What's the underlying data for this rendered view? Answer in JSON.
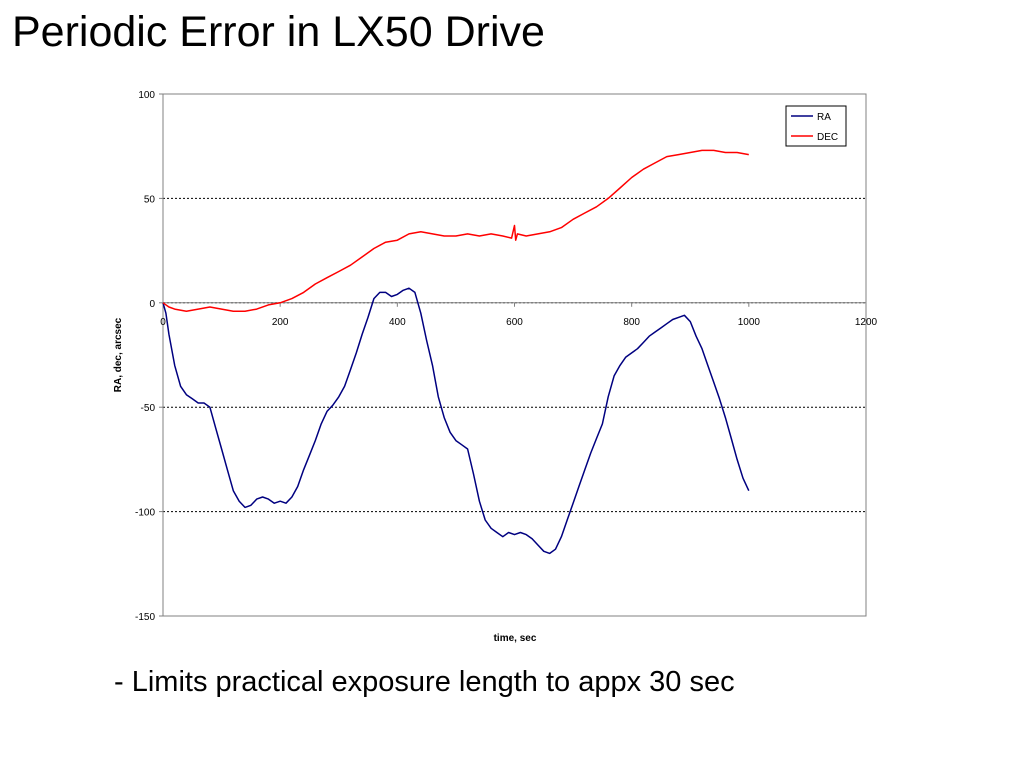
{
  "slide": {
    "title": "Periodic Error in LX50 Drive",
    "bullet": "- Limits practical exposure length to appx 30 sec"
  },
  "chart_data": {
    "type": "line",
    "title": "",
    "xlabel": "time, sec",
    "ylabel": "RA, dec, arcsec",
    "xlim": [
      0,
      1200
    ],
    "ylim": [
      -150,
      100
    ],
    "xticks": [
      0,
      200,
      400,
      600,
      800,
      1000,
      1200
    ],
    "yticks": [
      100,
      50,
      0,
      -50,
      -100,
      -150
    ],
    "grid": "horizontal-dashed",
    "legend": "top-right",
    "series": [
      {
        "name": "RA",
        "color": "#000080",
        "points": [
          [
            0,
            0
          ],
          [
            5,
            -5
          ],
          [
            10,
            -15
          ],
          [
            20,
            -30
          ],
          [
            30,
            -40
          ],
          [
            40,
            -44
          ],
          [
            50,
            -46
          ],
          [
            60,
            -48
          ],
          [
            70,
            -48
          ],
          [
            80,
            -50
          ],
          [
            90,
            -60
          ],
          [
            100,
            -70
          ],
          [
            110,
            -80
          ],
          [
            120,
            -90
          ],
          [
            130,
            -95
          ],
          [
            140,
            -98
          ],
          [
            150,
            -97
          ],
          [
            160,
            -94
          ],
          [
            170,
            -93
          ],
          [
            180,
            -94
          ],
          [
            190,
            -96
          ],
          [
            200,
            -95
          ],
          [
            210,
            -96
          ],
          [
            220,
            -93
          ],
          [
            230,
            -88
          ],
          [
            240,
            -80
          ],
          [
            250,
            -73
          ],
          [
            260,
            -66
          ],
          [
            270,
            -58
          ],
          [
            280,
            -52
          ],
          [
            290,
            -49
          ],
          [
            300,
            -45
          ],
          [
            310,
            -40
          ],
          [
            320,
            -32
          ],
          [
            330,
            -24
          ],
          [
            340,
            -15
          ],
          [
            350,
            -7
          ],
          [
            360,
            2
          ],
          [
            370,
            5
          ],
          [
            380,
            5
          ],
          [
            390,
            3
          ],
          [
            400,
            4
          ],
          [
            410,
            6
          ],
          [
            420,
            7
          ],
          [
            430,
            5
          ],
          [
            440,
            -5
          ],
          [
            450,
            -18
          ],
          [
            460,
            -30
          ],
          [
            470,
            -45
          ],
          [
            480,
            -55
          ],
          [
            490,
            -62
          ],
          [
            500,
            -66
          ],
          [
            510,
            -68
          ],
          [
            520,
            -70
          ],
          [
            530,
            -82
          ],
          [
            540,
            -95
          ],
          [
            550,
            -104
          ],
          [
            560,
            -108
          ],
          [
            570,
            -110
          ],
          [
            580,
            -112
          ],
          [
            590,
            -110
          ],
          [
            600,
            -111
          ],
          [
            610,
            -110
          ],
          [
            620,
            -111
          ],
          [
            630,
            -113
          ],
          [
            640,
            -116
          ],
          [
            650,
            -119
          ],
          [
            660,
            -120
          ],
          [
            670,
            -118
          ],
          [
            680,
            -112
          ],
          [
            690,
            -104
          ],
          [
            700,
            -96
          ],
          [
            710,
            -88
          ],
          [
            720,
            -80
          ],
          [
            730,
            -72
          ],
          [
            740,
            -65
          ],
          [
            750,
            -58
          ],
          [
            760,
            -45
          ],
          [
            770,
            -35
          ],
          [
            780,
            -30
          ],
          [
            790,
            -26
          ],
          [
            800,
            -24
          ],
          [
            810,
            -22
          ],
          [
            820,
            -19
          ],
          [
            830,
            -16
          ],
          [
            840,
            -14
          ],
          [
            850,
            -12
          ],
          [
            860,
            -10
          ],
          [
            870,
            -8
          ],
          [
            880,
            -7
          ],
          [
            890,
            -6
          ],
          [
            900,
            -9
          ],
          [
            910,
            -16
          ],
          [
            920,
            -22
          ],
          [
            930,
            -30
          ],
          [
            940,
            -38
          ],
          [
            950,
            -46
          ],
          [
            960,
            -55
          ],
          [
            970,
            -65
          ],
          [
            980,
            -75
          ],
          [
            990,
            -84
          ],
          [
            1000,
            -90
          ]
        ]
      },
      {
        "name": "DEC",
        "color": "#ff0000",
        "points": [
          [
            0,
            0
          ],
          [
            10,
            -2
          ],
          [
            20,
            -3
          ],
          [
            40,
            -4
          ],
          [
            60,
            -3
          ],
          [
            80,
            -2
          ],
          [
            100,
            -3
          ],
          [
            120,
            -4
          ],
          [
            140,
            -4
          ],
          [
            160,
            -3
          ],
          [
            180,
            -1
          ],
          [
            200,
            0
          ],
          [
            220,
            2
          ],
          [
            240,
            5
          ],
          [
            260,
            9
          ],
          [
            280,
            12
          ],
          [
            300,
            15
          ],
          [
            320,
            18
          ],
          [
            340,
            22
          ],
          [
            360,
            26
          ],
          [
            380,
            29
          ],
          [
            400,
            30
          ],
          [
            420,
            33
          ],
          [
            440,
            34
          ],
          [
            460,
            33
          ],
          [
            480,
            32
          ],
          [
            500,
            32
          ],
          [
            520,
            33
          ],
          [
            540,
            32
          ],
          [
            560,
            33
          ],
          [
            580,
            32
          ],
          [
            595,
            31
          ],
          [
            600,
            37
          ],
          [
            602,
            30
          ],
          [
            605,
            33
          ],
          [
            620,
            32
          ],
          [
            640,
            33
          ],
          [
            660,
            34
          ],
          [
            680,
            36
          ],
          [
            700,
            40
          ],
          [
            720,
            43
          ],
          [
            740,
            46
          ],
          [
            760,
            50
          ],
          [
            780,
            55
          ],
          [
            800,
            60
          ],
          [
            820,
            64
          ],
          [
            840,
            67
          ],
          [
            860,
            70
          ],
          [
            880,
            71
          ],
          [
            900,
            72
          ],
          [
            920,
            73
          ],
          [
            940,
            73
          ],
          [
            960,
            72
          ],
          [
            980,
            72
          ],
          [
            1000,
            71
          ]
        ]
      }
    ]
  }
}
